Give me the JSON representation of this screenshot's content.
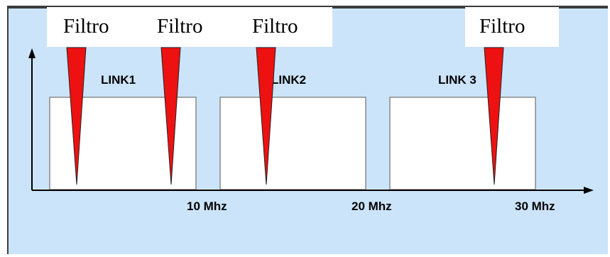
{
  "diagram": {
    "filter_label": "Filtro",
    "links": [
      {
        "label": "LINK1"
      },
      {
        "label": "LINK2"
      },
      {
        "label": "LINK 3"
      }
    ],
    "frequency_ticks": [
      "10 Mhz",
      "20 Mhz",
      "30 Mhz"
    ],
    "colors": {
      "background": "#cce4fa",
      "border": "#3c3c3c",
      "band_fill": "#ffffff",
      "band_stroke": "#8a8a8a",
      "filter": "#ee1111",
      "filter_stroke": "#222222",
      "axis": "#000000"
    }
  }
}
